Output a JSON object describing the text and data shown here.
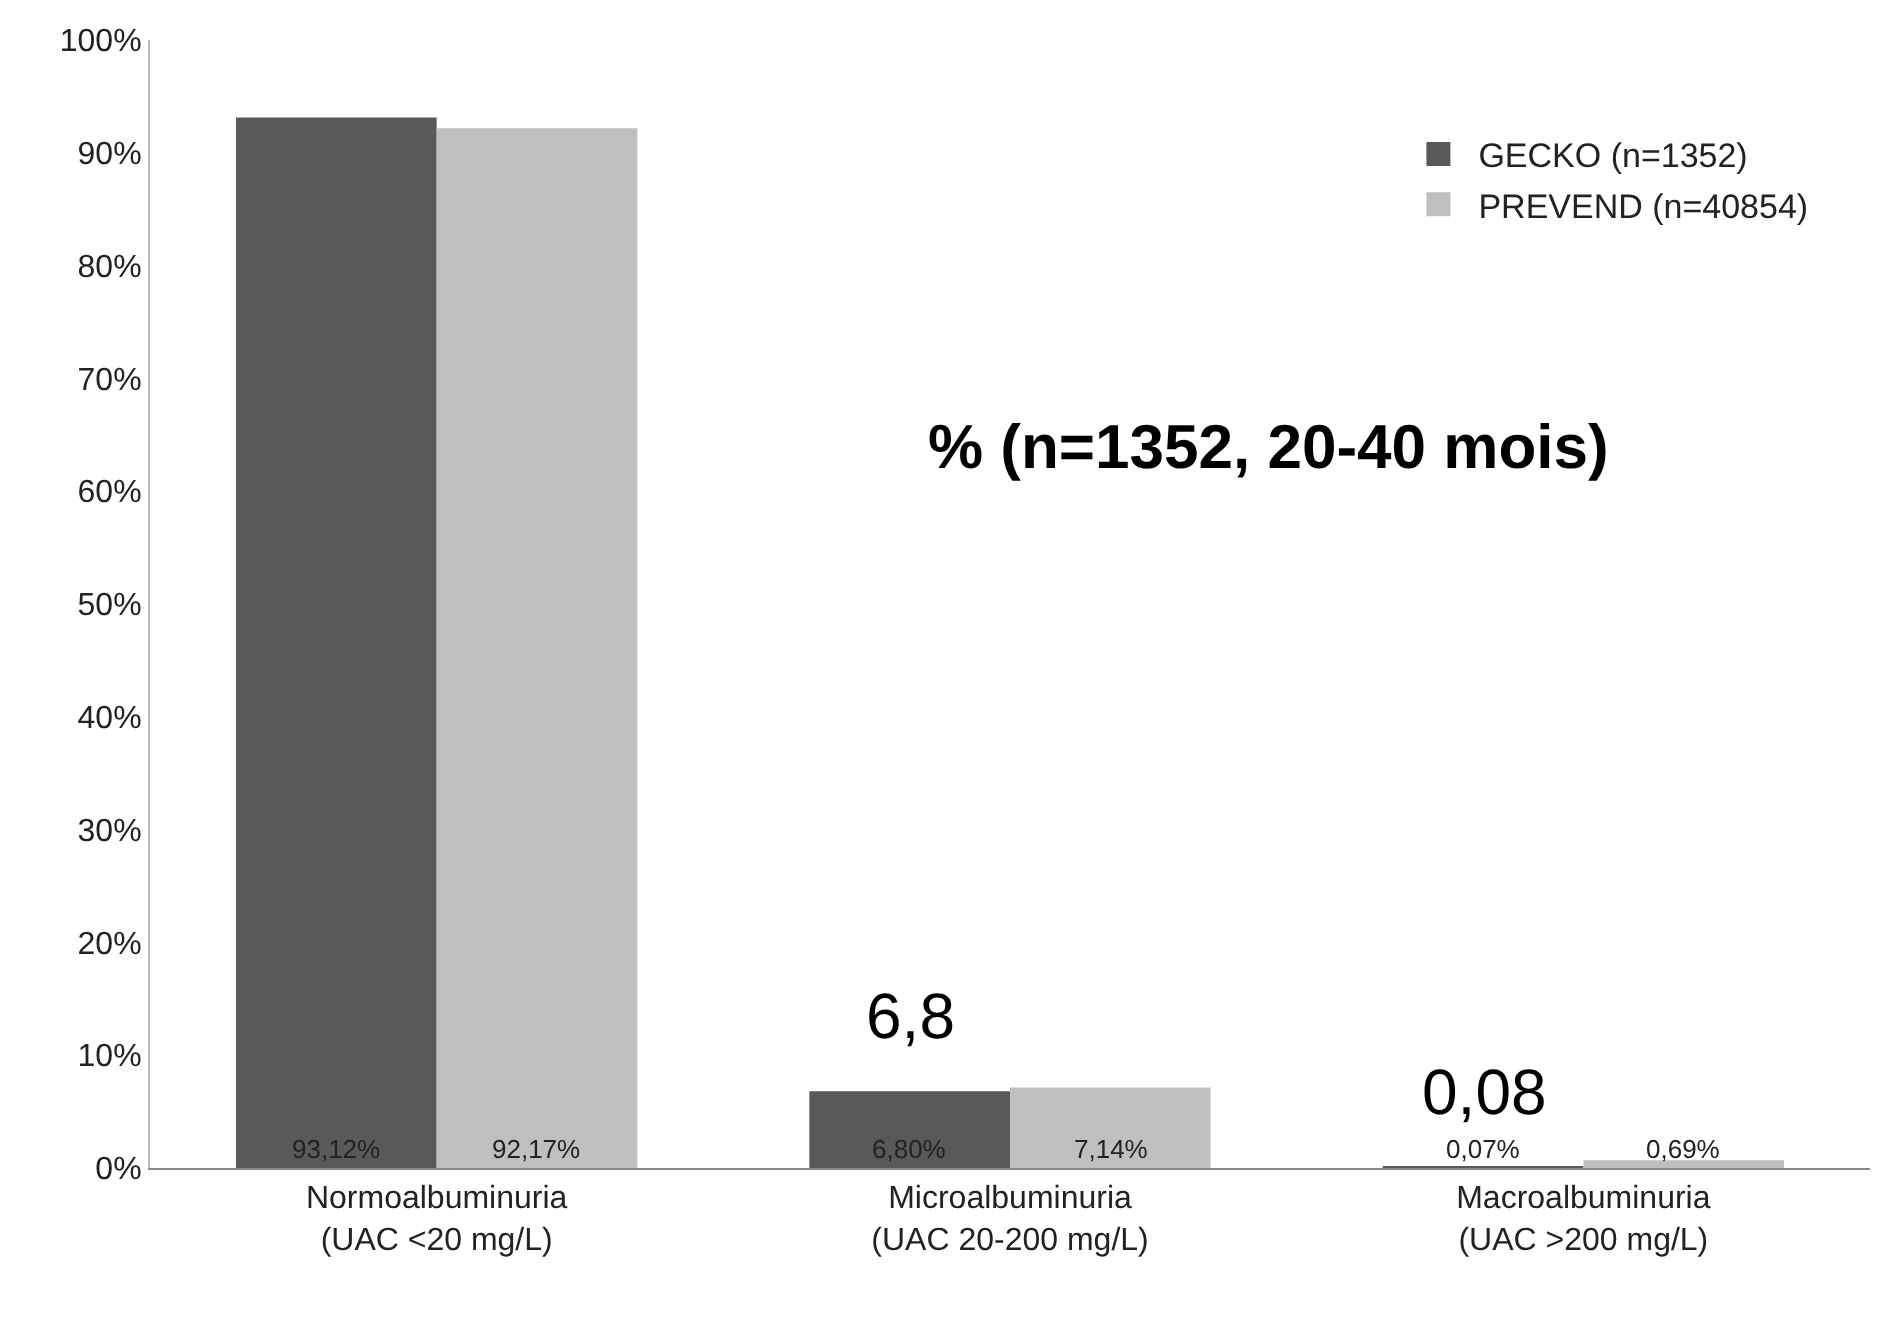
{
  "chart_data": {
    "type": "bar",
    "categories": [
      "Normoalbuminuria\n(UAC <20 mg/L)",
      "Microalbuminuria\n(UAC 20-200 mg/L)",
      "Macroalbuminuria\n(UAC >200 mg/L)"
    ],
    "series": [
      {
        "name": "GECKO (n=1352)",
        "color": "#595959",
        "values": [
          93.12,
          6.8,
          0.07
        ],
        "value_labels": [
          "93,12%",
          "6,80%",
          "0,07%"
        ]
      },
      {
        "name": "PREVEND (n=40854)",
        "color": "#bfbfbf",
        "values": [
          92.17,
          7.14,
          0.69
        ],
        "value_labels": [
          "92,17%",
          "7,14%",
          "0,69%"
        ]
      }
    ],
    "ylim": [
      0,
      100
    ],
    "yticks": [
      {
        "value": 0,
        "label": "0%"
      },
      {
        "value": 10,
        "label": "10%"
      },
      {
        "value": 20,
        "label": "20%"
      },
      {
        "value": 30,
        "label": "30%"
      },
      {
        "value": 40,
        "label": "40%"
      },
      {
        "value": 50,
        "label": "50%"
      },
      {
        "value": 60,
        "label": "60%"
      },
      {
        "value": 70,
        "label": "70%"
      },
      {
        "value": 80,
        "label": "80%"
      },
      {
        "value": 90,
        "label": "90%"
      },
      {
        "value": 100,
        "label": "100%"
      }
    ],
    "annotations": [
      {
        "text": "6,8",
        "x": "Microalbuminuria\n(UAC 20-200 mg/L)",
        "y": 6.8
      },
      {
        "text": "0,08",
        "x": "Macroalbuminuria\n(UAC >200 mg/L)",
        "y": 0.07
      },
      "% (n=1352, 20-40 mois)"
    ],
    "legend": "top right"
  }
}
